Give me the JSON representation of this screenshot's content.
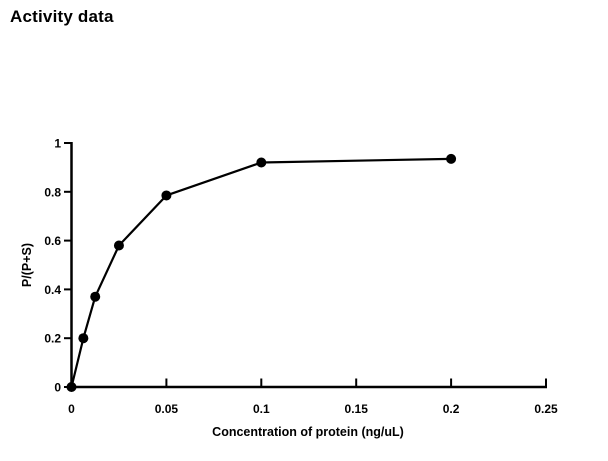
{
  "title": "Activity data",
  "chart_data": {
    "type": "line",
    "title": "Activity data",
    "xlabel": "Concentration of protein (ng/uL)",
    "ylabel": "P/(P+S)",
    "x": [
      0,
      0.00625,
      0.0125,
      0.025,
      0.05,
      0.1,
      0.2
    ],
    "y": [
      0,
      0.2,
      0.37,
      0.58,
      0.785,
      0.92,
      0.935
    ],
    "xlim": [
      0,
      0.25
    ],
    "ylim": [
      0,
      1
    ],
    "x_ticks": [
      0,
      0.05,
      0.1,
      0.15,
      0.2,
      0.25
    ],
    "x_tick_labels": [
      "0",
      "0.05",
      "0.1",
      "0.15",
      "0.2",
      "0.25"
    ],
    "y_ticks": [
      0,
      0.2,
      0.4,
      0.6,
      0.8,
      1
    ],
    "y_tick_labels": [
      "0",
      "0.2",
      "0.4",
      "0.6",
      "0.8",
      "1"
    ],
    "grid": false,
    "legend": false,
    "marker": "filled-circle",
    "line_color": "#000000",
    "marker_color": "#000000",
    "axis_color": "#000000",
    "background_color": "#ffffff"
  }
}
